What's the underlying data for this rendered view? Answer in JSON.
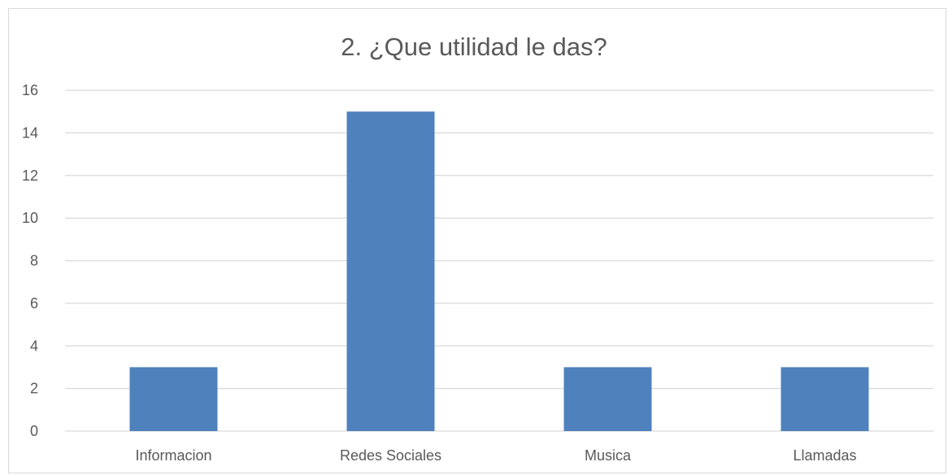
{
  "chart_data": {
    "type": "bar",
    "title": "2. ¿Que utilidad le das?",
    "categories": [
      "Informacion",
      "Redes Sociales",
      "Musica",
      "Llamadas"
    ],
    "values": [
      3,
      15,
      3,
      3
    ],
    "ylim": [
      0,
      16
    ],
    "yticks": [
      "0",
      "2",
      "4",
      "6",
      "8",
      "10",
      "12",
      "14",
      "16"
    ],
    "grid": true,
    "legend": "none",
    "colors": {
      "bar": "#4f81bd",
      "grid": "#d9d9d9",
      "text": "#595959"
    }
  }
}
